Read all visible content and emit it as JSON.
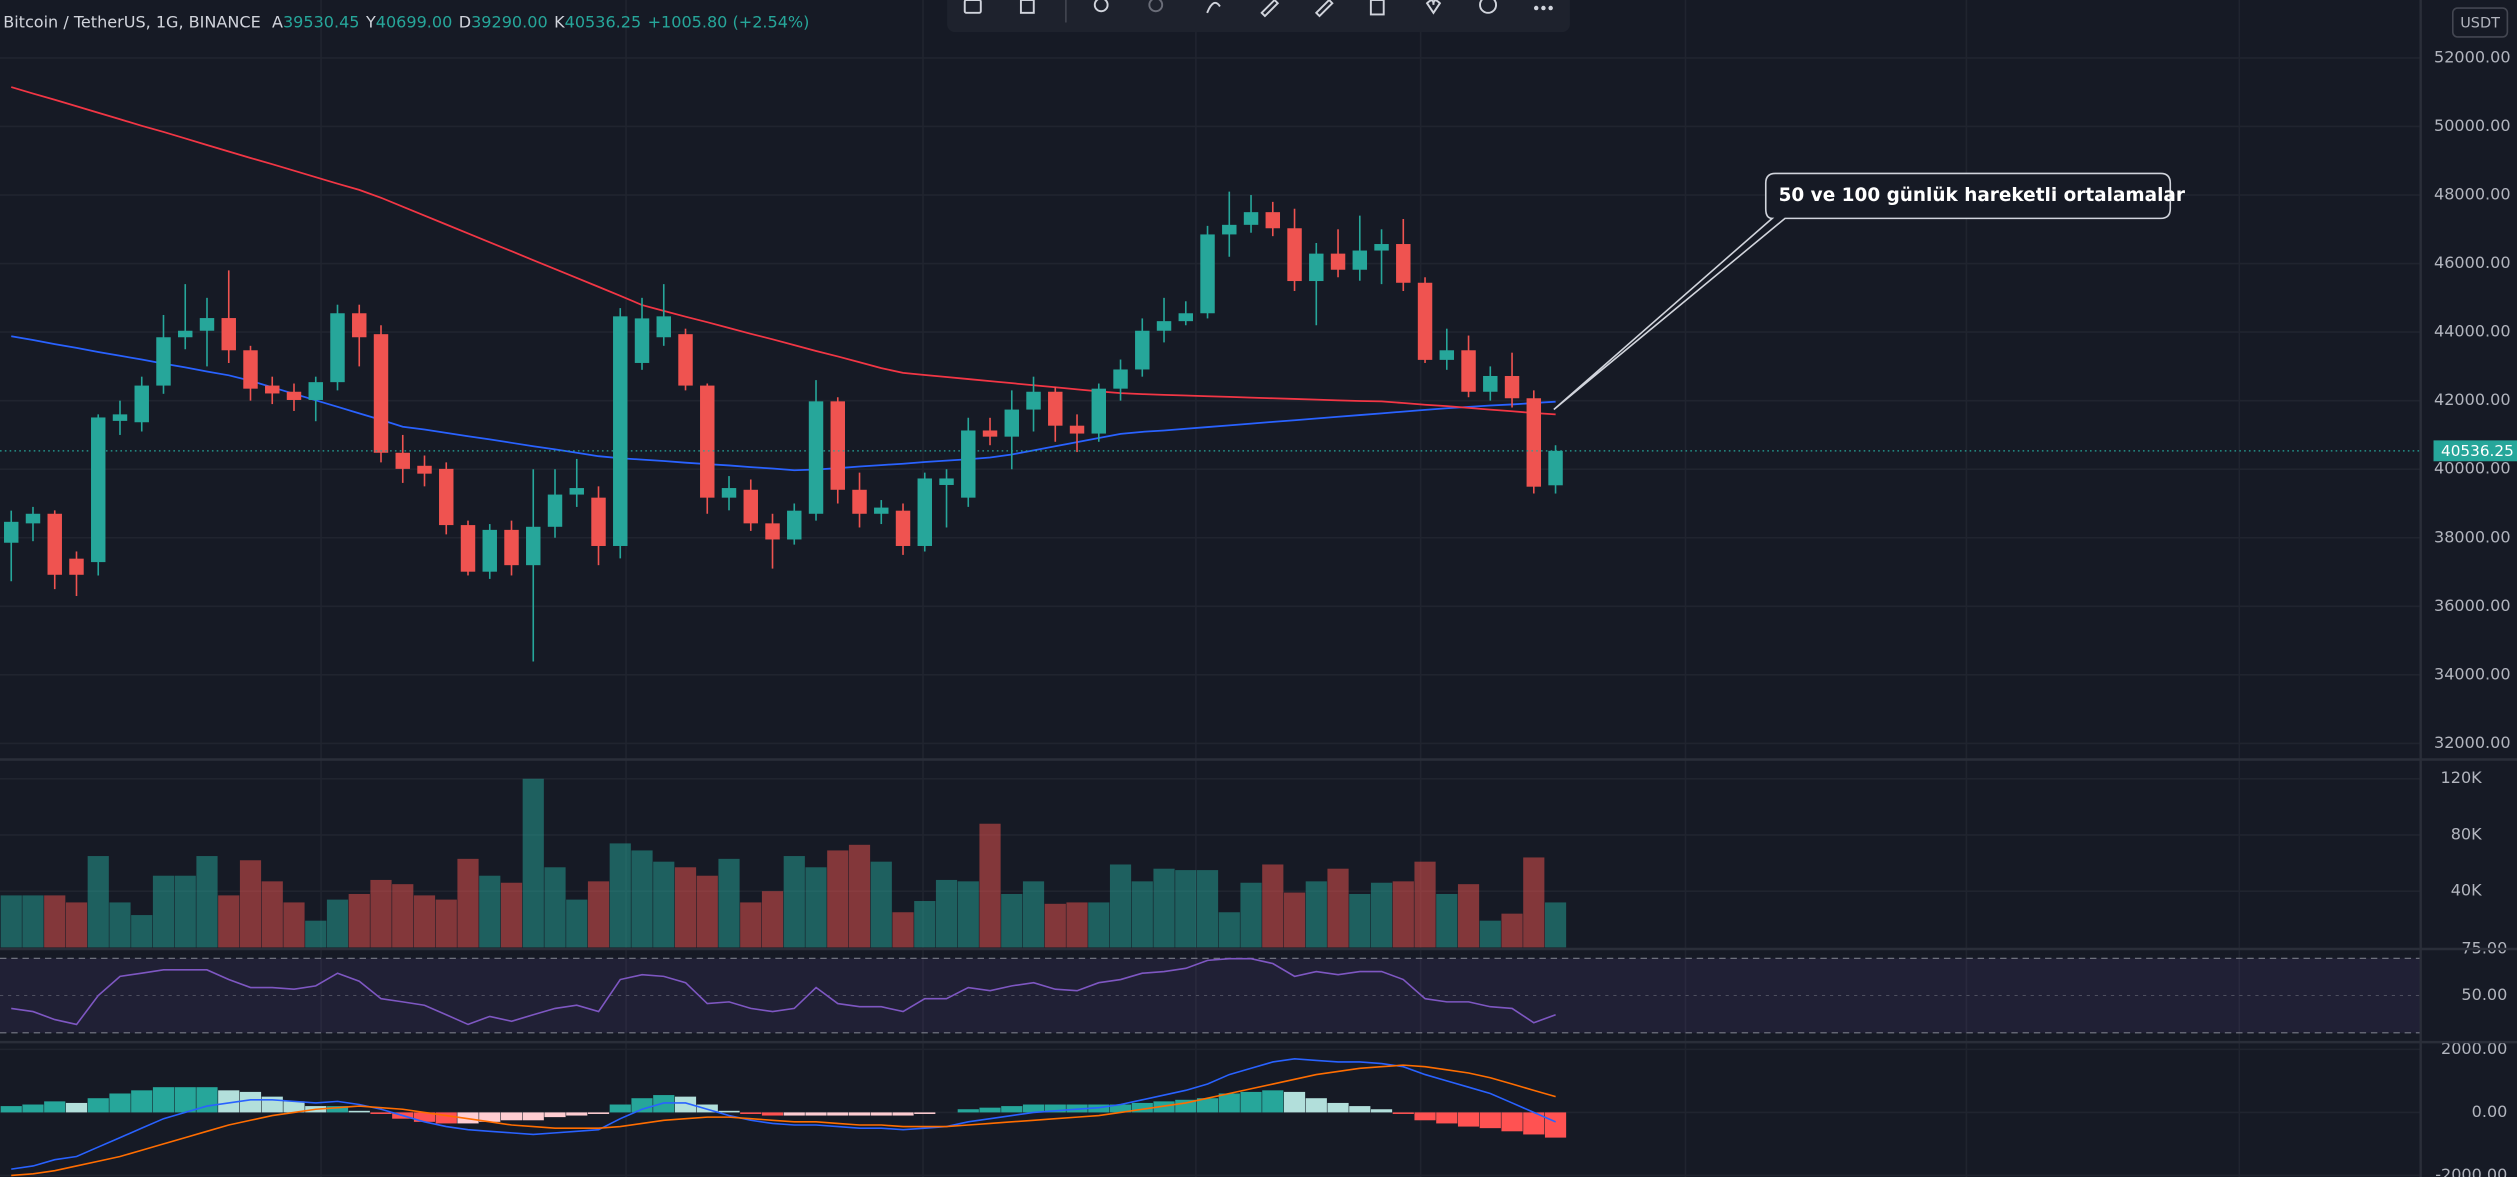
{
  "chart_data": {
    "type": "candlestick",
    "title": "Bitcoin / TetherUS, 1G, BINANCE",
    "ohlc_header": [
      {
        "key": "A",
        "value": "39530.45"
      },
      {
        "key": "Y",
        "value": "40699.00"
      },
      {
        "key": "D",
        "value": "39290.00"
      },
      {
        "key": "K",
        "value": "40536.25"
      }
    ],
    "change": "+1005.80 (+2.54%)",
    "currency": "USDT",
    "annotation": "50 ve 100 günlük hareketli ortalamalar",
    "up_color": "#26a69a",
    "down_color": "#ef5350",
    "open": [
      37855,
      38420,
      38700,
      37390,
      37290,
      41410,
      41370,
      42440,
      43850,
      44040,
      44410,
      43470,
      42440,
      42260,
      42020,
      42540,
      44550,
      43940,
      40480,
      40100,
      40010,
      38370,
      37010,
      38230,
      37200,
      38320,
      39260,
      39170,
      37760,
      43100,
      43850,
      43940,
      42440,
      39170,
      39400,
      38420,
      37950,
      38700,
      41980,
      39400,
      38700,
      38790,
      37760,
      39540,
      39170,
      41130,
      40950,
      41740,
      42260,
      41270,
      41040,
      42350,
      42910,
      44040,
      44320,
      44550,
      46850,
      47130,
      47500,
      47030,
      45490,
      46290,
      45820,
      46380,
      46570,
      45440,
      43190,
      43470,
      42260,
      42720,
      42070,
      39530.45
    ],
    "high": [
      38790,
      38900,
      38800,
      37600,
      41600,
      42000,
      42700,
      44500,
      45400,
      45000,
      45800,
      43600,
      42700,
      42500,
      42700,
      44800,
      44800,
      44200,
      41000,
      40400,
      40200,
      38500,
      38400,
      38500,
      40000,
      40000,
      40300,
      39500,
      44700,
      45000,
      45400,
      44100,
      42500,
      39800,
      39700,
      38700,
      39000,
      42600,
      42100,
      39900,
      39100,
      39000,
      39900,
      40000,
      41500,
      41500,
      42300,
      42700,
      42400,
      41600,
      42500,
      43200,
      44400,
      45000,
      44900,
      47100,
      48100,
      48000,
      47800,
      47600,
      46600,
      47000,
      47400,
      47000,
      47300,
      45600,
      44100,
      43900,
      43000,
      43400,
      42300,
      40699
    ],
    "low": [
      36730,
      37900,
      36500,
      36300,
      36900,
      41000,
      41100,
      42200,
      43500,
      43000,
      43100,
      42000,
      41900,
      41700,
      41400,
      42300,
      43000,
      40200,
      39600,
      39500,
      38100,
      36900,
      36800,
      36900,
      34390,
      38000,
      38900,
      37200,
      37400,
      42900,
      43600,
      42300,
      38700,
      38800,
      38200,
      37100,
      37800,
      38500,
      39000,
      38300,
      38400,
      37500,
      37600,
      38300,
      38900,
      40700,
      40000,
      41100,
      40800,
      40500,
      40800,
      42000,
      42700,
      43700,
      44200,
      44400,
      46200,
      46900,
      46800,
      45200,
      44200,
      45600,
      45500,
      45400,
      45200,
      43100,
      42900,
      42100,
      42000,
      41800,
      39290,
      39290
    ],
    "close": [
      38465,
      38700,
      36920,
      36920,
      41510,
      41600,
      42440,
      43850,
      44040,
      44410,
      43470,
      42350,
      42210,
      42020,
      42540,
      44550,
      43850,
      40480,
      40010,
      39870,
      38370,
      37010,
      38230,
      37200,
      38320,
      39260,
      39450,
      37760,
      44460,
      44400,
      44460,
      42440,
      39170,
      39450,
      38420,
      37950,
      38790,
      41980,
      39400,
      38700,
      38880,
      37760,
      39730,
      39730,
      41130,
      40950,
      41740,
      42260,
      41270,
      41040,
      42350,
      42910,
      44040,
      44320,
      44550,
      46850,
      47130,
      47500,
      47030,
      45490,
      46290,
      45820,
      46380,
      46570,
      45440,
      43190,
      43470,
      42260,
      42720,
      42070,
      39490,
      40536.25
    ],
    "moving_averages": [
      {
        "color": "#2962ff",
        "values": [
          43880,
          43770,
          43650,
          43540,
          43420,
          43310,
          43200,
          43080,
          42970,
          42850,
          42740,
          42580,
          42390,
          42200,
          42010,
          41820,
          41630,
          41440,
          41240,
          41160,
          41060,
          40960,
          40870,
          40770,
          40670,
          40580,
          40480,
          40380,
          40320,
          40280,
          40240,
          40190,
          40150,
          40110,
          40060,
          40020,
          39970,
          39990,
          40030,
          40080,
          40120,
          40160,
          40210,
          40250,
          40290,
          40340,
          40430,
          40550,
          40670,
          40790,
          40910,
          41030,
          41090,
          41130,
          41180,
          41230,
          41280,
          41330,
          41380,
          41430,
          41480,
          41530,
          41580,
          41630,
          41680,
          41730,
          41780,
          41820,
          41860,
          41890,
          41930,
          41970
        ]
      },
      {
        "color": "#f23645",
        "values": [
          51150,
          50960,
          50780,
          50590,
          50400,
          50210,
          50020,
          49840,
          49650,
          49460,
          49270,
          49080,
          48900,
          48710,
          48520,
          48330,
          48150,
          47920,
          47660,
          47400,
          47140,
          46880,
          46620,
          46360,
          46100,
          45840,
          45580,
          45320,
          45060,
          44790,
          44620,
          44450,
          44290,
          44120,
          43950,
          43790,
          43620,
          43450,
          43290,
          43120,
          42950,
          42810,
          42750,
          42690,
          42630,
          42570,
          42510,
          42450,
          42390,
          42330,
          42270,
          42220,
          42190,
          42170,
          42150,
          42130,
          42110,
          42090,
          42070,
          42050,
          42030,
          42010,
          41990,
          41980,
          41930,
          41880,
          41840,
          41790,
          41740,
          41690,
          41640,
          41600
        ]
      }
    ],
    "ylim": [
      31530,
      53690
    ],
    "yticks": [
      {
        "value": 32000,
        "label": "32000.00"
      },
      {
        "value": 34000,
        "label": "34000.00"
      },
      {
        "value": 36000,
        "label": "36000.00"
      },
      {
        "value": 38000,
        "label": "38000.00"
      },
      {
        "value": 40000,
        "label": "40000.00"
      },
      {
        "value": 42000,
        "label": "42000.00"
      },
      {
        "value": 44000,
        "label": "44000.00"
      },
      {
        "value": 46000,
        "label": "46000.00"
      },
      {
        "value": 48000,
        "label": "48000.00"
      },
      {
        "value": 50000,
        "label": "50000.00"
      },
      {
        "value": 52000,
        "label": "52000.00"
      }
    ],
    "last_price": {
      "value": 40536.25,
      "label": "40536.25"
    },
    "grid": true,
    "volume": {
      "values": [
        37000,
        37000,
        37000,
        32000,
        65000,
        32000,
        23000,
        51000,
        51000,
        65000,
        37000,
        62000,
        47000,
        32000,
        19000,
        34000,
        38000,
        48000,
        45000,
        37000,
        34000,
        63000,
        51000,
        46000,
        120000,
        57000,
        34000,
        47000,
        74000,
        69000,
        61000,
        57000,
        51000,
        63000,
        32000,
        40000,
        65000,
        57000,
        69000,
        73000,
        61000,
        25000,
        33000,
        48000,
        47000,
        88000,
        38000,
        47000,
        31000,
        32000,
        32000,
        59000,
        47000,
        56000,
        55000,
        55000,
        25000,
        46000,
        59000,
        39000,
        47000,
        56000,
        38000,
        46000,
        47000,
        61000,
        38000,
        45000,
        19000,
        24000,
        64000,
        32000
      ],
      "ylim": [
        0,
        133700
      ],
      "yticks": [
        {
          "value": 40000,
          "label": "40K"
        },
        {
          "value": 80000,
          "label": "80K"
        },
        {
          "value": 120000,
          "label": "120K"
        }
      ]
    },
    "rsi": {
      "color": "#7e57c2",
      "values": [
        43.1,
        41.4,
        37.1,
        34.5,
        50.0,
        60.3,
        62.0,
        63.8,
        63.8,
        63.8,
        58.6,
        54.3,
        54.3,
        53.4,
        55.2,
        62.0,
        57.7,
        48.3,
        46.6,
        44.8,
        39.7,
        34.5,
        38.8,
        36.2,
        39.7,
        43.1,
        44.8,
        41.4,
        58.6,
        61.2,
        60.3,
        56.9,
        45.7,
        46.6,
        43.1,
        41.4,
        43.1,
        54.3,
        45.7,
        44.0,
        44.0,
        41.4,
        48.3,
        48.3,
        54.3,
        52.6,
        55.2,
        56.9,
        53.4,
        52.6,
        56.9,
        58.6,
        62.0,
        62.9,
        64.6,
        68.9,
        69.8,
        69.8,
        67.2,
        60.3,
        62.9,
        61.2,
        62.9,
        62.9,
        58.6,
        48.3,
        46.6,
        46.6,
        44.0,
        43.1,
        35.4,
        39.7
      ],
      "ylim": [
        25,
        75
      ],
      "yticks": [
        {
          "value": 50,
          "label": "50.00"
        },
        {
          "value": 75,
          "label": "75.00"
        }
      ],
      "bands": [
        30,
        70
      ]
    },
    "macd": {
      "macd_color": "#2962ff",
      "signal_color": "#ff6d00",
      "macd": [
        -1800,
        -1700,
        -1500,
        -1400,
        -1100,
        -800,
        -500,
        -200,
        0,
        200,
        300,
        400,
        400,
        350,
        300,
        350,
        250,
        100,
        -100,
        -300,
        -450,
        -550,
        -600,
        -650,
        -700,
        -650,
        -600,
        -550,
        -200,
        100,
        300,
        300,
        100,
        -100,
        -250,
        -350,
        -400,
        -400,
        -450,
        -500,
        -500,
        -550,
        -500,
        -450,
        -300,
        -200,
        -100,
        0,
        50,
        100,
        150,
        250,
        400,
        550,
        700,
        900,
        1200,
        1400,
        1600,
        1700,
        1650,
        1600,
        1600,
        1550,
        1450,
        1200,
        1000,
        800,
        600,
        300,
        0,
        -300
      ],
      "signal": [
        -2000,
        -1950,
        -1850,
        -1700,
        -1550,
        -1400,
        -1200,
        -1000,
        -800,
        -600,
        -400,
        -250,
        -100,
        0,
        100,
        150,
        200,
        150,
        100,
        0,
        -100,
        -200,
        -300,
        -400,
        -450,
        -500,
        -500,
        -500,
        -450,
        -350,
        -250,
        -200,
        -150,
        -150,
        -200,
        -250,
        -300,
        -300,
        -350,
        -400,
        -400,
        -450,
        -450,
        -450,
        -400,
        -350,
        -300,
        -250,
        -200,
        -150,
        -100,
        0,
        100,
        200,
        300,
        450,
        600,
        750,
        900,
        1050,
        1200,
        1300,
        1400,
        1450,
        1500,
        1450,
        1350,
        1250,
        1100,
        900,
        700,
        500
      ],
      "histogram": [
        200,
        250,
        350,
        300,
        450,
        600,
        700,
        800,
        800,
        800,
        700,
        650,
        500,
        350,
        200,
        200,
        50,
        -50,
        -200,
        -300,
        -350,
        -350,
        -300,
        -250,
        -250,
        -150,
        -100,
        -50,
        250,
        450,
        550,
        500,
        250,
        50,
        -50,
        -100,
        -100,
        -100,
        -100,
        -100,
        -100,
        -100,
        -50,
        0,
        100,
        150,
        200,
        250,
        250,
        250,
        250,
        250,
        300,
        350,
        400,
        450,
        600,
        650,
        700,
        650,
        450,
        300,
        200,
        100,
        -50,
        -250,
        -350,
        -450,
        -500,
        -600,
        -700,
        -800
      ],
      "ylim": [
        -2050,
        2230
      ],
      "yticks": [
        {
          "value": -2000,
          "label": "-2000.00"
        },
        {
          "value": 0,
          "label": "0.00"
        },
        {
          "value": 2000,
          "label": "2000.00"
        }
      ]
    }
  }
}
